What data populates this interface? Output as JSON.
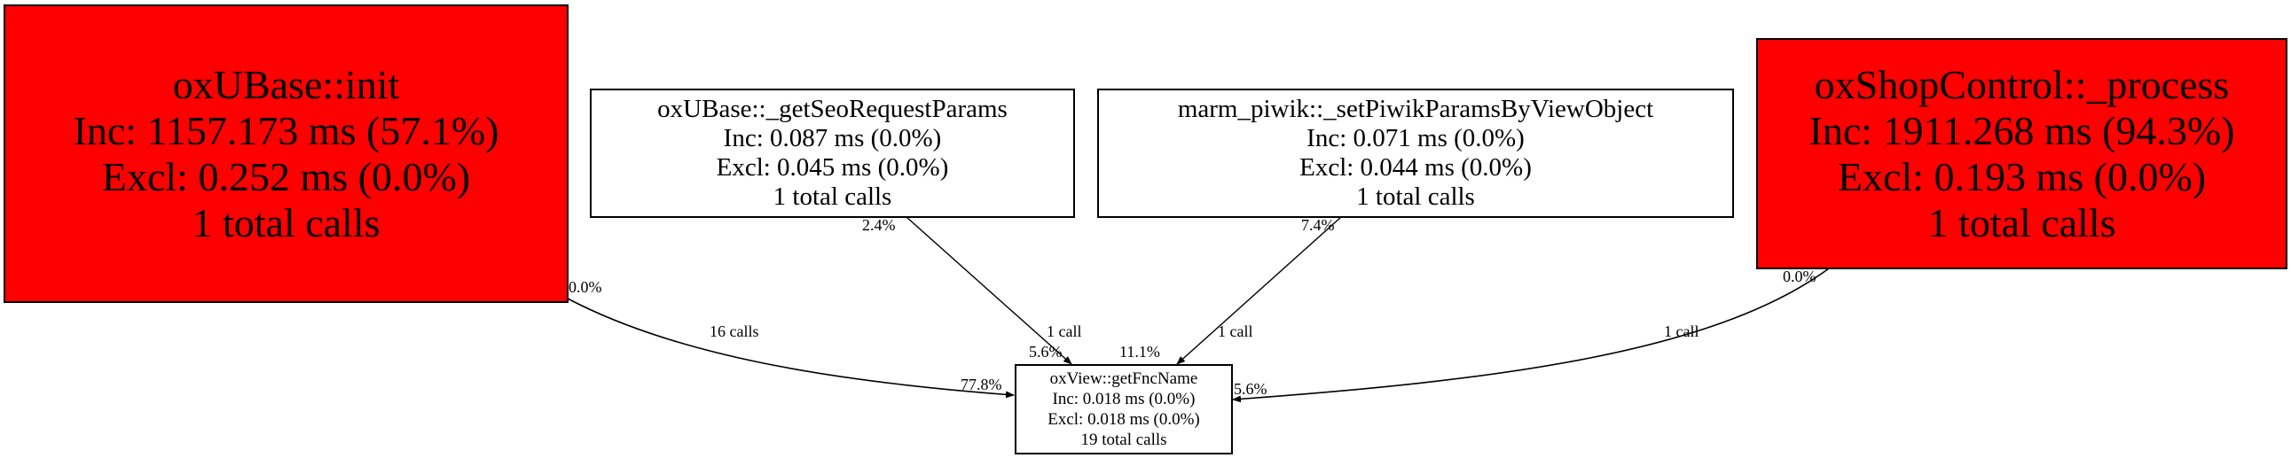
{
  "colors": {
    "hot": "#ff0000",
    "cold": "#ffffff",
    "edge": "#000000"
  },
  "nodes": {
    "init": {
      "name": "oxUBase::init",
      "inc": "Inc: 1157.173 ms (57.1%)",
      "excl": "Excl: 0.252 ms (0.0%)",
      "calls": "1 total calls"
    },
    "seo": {
      "name": "oxUBase::_getSeoRequestParams",
      "inc": "Inc: 0.087 ms (0.0%)",
      "excl": "Excl: 0.045 ms (0.0%)",
      "calls": "1 total calls"
    },
    "piwik": {
      "name": "marm_piwik::_setPiwikParamsByViewObject",
      "inc": "Inc: 0.071 ms (0.0%)",
      "excl": "Excl: 0.044 ms (0.0%)",
      "calls": "1 total calls"
    },
    "shop": {
      "name": "oxShopControl::_process",
      "inc": "Inc: 1911.268 ms (94.3%)",
      "excl": "Excl: 0.193 ms (0.0%)",
      "calls": "1 total calls"
    },
    "fnc": {
      "name": "oxView::getFncName",
      "inc": "Inc: 0.018 ms (0.0%)",
      "excl": "Excl: 0.018 ms (0.0%)",
      "calls": "19 total calls"
    }
  },
  "edges": {
    "init_fnc": {
      "tail": "0.0%",
      "label": "16 calls",
      "head": "77.8%"
    },
    "seo_fnc": {
      "tail": "2.4%",
      "label": "1 call",
      "head": "5.6%"
    },
    "piwik_fnc": {
      "tail": "7.4%",
      "label": "1 call",
      "head": "11.1%"
    },
    "shop_fnc": {
      "tail": "0.0%",
      "label": "1 call",
      "head": "5.6%"
    }
  }
}
